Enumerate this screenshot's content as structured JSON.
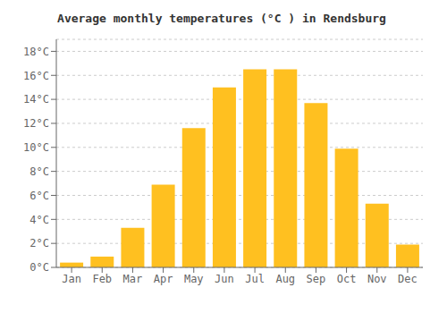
{
  "chart_data": {
    "type": "bar",
    "title": "Average monthly temperatures (°C ) in Rendsburg",
    "categories": [
      "Jan",
      "Feb",
      "Mar",
      "Apr",
      "May",
      "Jun",
      "Jul",
      "Aug",
      "Sep",
      "Oct",
      "Nov",
      "Dec"
    ],
    "values": [
      0.4,
      0.9,
      3.3,
      6.9,
      11.6,
      15.0,
      16.5,
      16.5,
      13.7,
      9.9,
      5.3,
      1.9
    ],
    "color": "#FFC020",
    "ylim": [
      0,
      19
    ],
    "yticks": [
      {
        "value": 0,
        "label": "0°C"
      },
      {
        "value": 2,
        "label": "2°C"
      },
      {
        "value": 4,
        "label": "4°C"
      },
      {
        "value": 6,
        "label": "6°C"
      },
      {
        "value": 8,
        "label": "8°C"
      },
      {
        "value": 10,
        "label": "10°C"
      },
      {
        "value": 12,
        "label": "12°C"
      },
      {
        "value": 14,
        "label": "14°C"
      },
      {
        "value": 16,
        "label": "16°C"
      },
      {
        "value": 18,
        "label": "18°C"
      }
    ],
    "grid": true
  }
}
